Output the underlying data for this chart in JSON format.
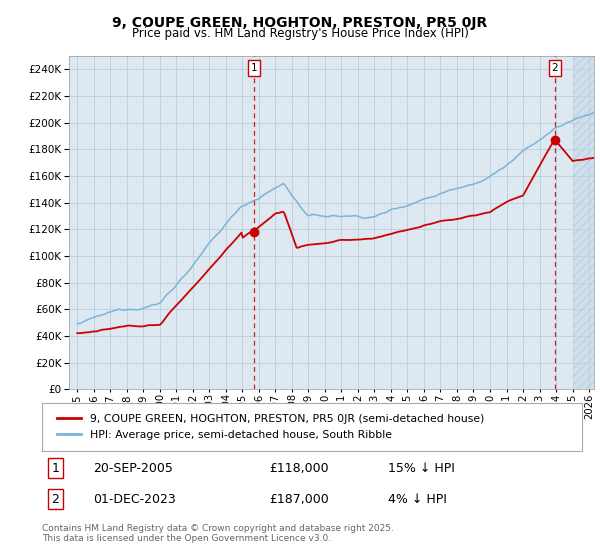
{
  "title": "9, COUPE GREEN, HOGHTON, PRESTON, PR5 0JR",
  "subtitle": "Price paid vs. HM Land Registry's House Price Index (HPI)",
  "title_fontsize": 10,
  "subtitle_fontsize": 8.5,
  "ylim": [
    0,
    250000
  ],
  "yticks": [
    0,
    20000,
    40000,
    60000,
    80000,
    100000,
    120000,
    140000,
    160000,
    180000,
    200000,
    220000,
    240000
  ],
  "xlabel_years": [
    "1995",
    "1996",
    "1997",
    "1998",
    "1999",
    "2000",
    "2001",
    "2002",
    "2003",
    "2004",
    "2005",
    "2006",
    "2007",
    "2008",
    "2009",
    "2010",
    "2011",
    "2012",
    "2013",
    "2014",
    "2015",
    "2016",
    "2017",
    "2018",
    "2019",
    "2020",
    "2021",
    "2022",
    "2023",
    "2024",
    "2025",
    "2026"
  ],
  "hpi_color": "#7ab5d9",
  "property_color": "#cc0000",
  "marker_color": "#cc0000",
  "vline_color": "#cc0000",
  "grid_color": "#b8cfe0",
  "bg_color": "#dde8f0",
  "legend_label_property": "9, COUPE GREEN, HOGHTON, PRESTON, PR5 0JR (semi-detached house)",
  "legend_label_hpi": "HPI: Average price, semi-detached house, South Ribble",
  "sale1_date": "20-SEP-2005",
  "sale1_price": "£118,000",
  "sale1_hpi": "15% ↓ HPI",
  "sale1_x": 2005.72,
  "sale1_y": 118000,
  "sale2_date": "01-DEC-2023",
  "sale2_price": "£187,000",
  "sale2_hpi": "4% ↓ HPI",
  "sale2_x": 2023.92,
  "sale2_y": 187000,
  "annotation_fontsize": 8,
  "copyright_text": "Contains HM Land Registry data © Crown copyright and database right 2025.\nThis data is licensed under the Open Government Licence v3.0.",
  "future_cutoff": 2025.0,
  "xlim_left": 1994.5,
  "xlim_right": 2026.3
}
